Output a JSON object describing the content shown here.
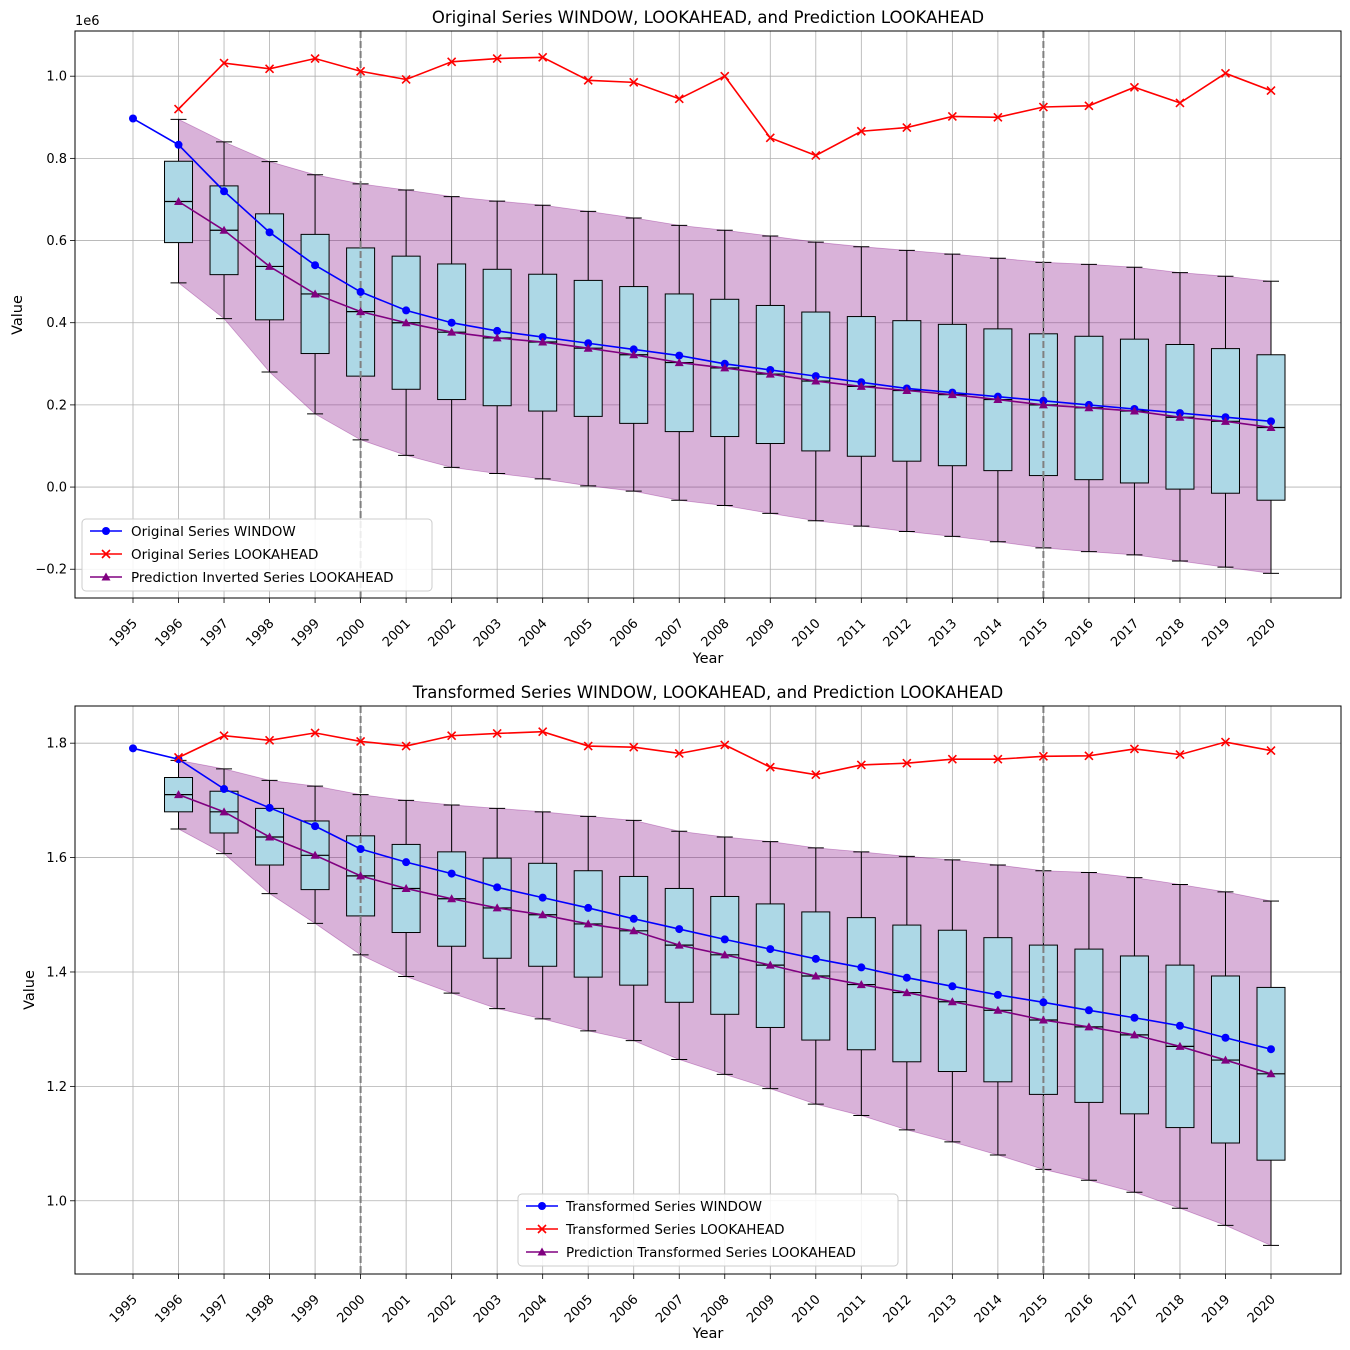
{
  "chart_data": [
    {
      "type": "line",
      "title": "Original Series WINDOW, LOOKAHEAD, and Prediction LOOKAHEAD",
      "xlabel": "Year",
      "ylabel": "Value",
      "offset_label": "1e6",
      "ylim": [
        -0.27,
        1.11
      ],
      "yticks": [
        -0.2,
        0.0,
        0.2,
        0.4,
        0.6,
        0.8,
        1.0
      ],
      "ytick_labels": [
        "−0.2",
        "0.0",
        "0.2",
        "0.4",
        "0.6",
        "0.8",
        "1.0"
      ],
      "years": [
        1995,
        1996,
        1997,
        1998,
        1999,
        2000,
        2001,
        2002,
        2003,
        2004,
        2005,
        2006,
        2007,
        2008,
        2009,
        2010,
        2011,
        2012,
        2013,
        2014,
        2015,
        2016,
        2017,
        2018,
        2019,
        2020
      ],
      "vlines": [
        2000,
        2015
      ],
      "legend_position": "lower-left",
      "series": [
        {
          "name": "Original Series WINDOW",
          "color": "#0000ff",
          "marker": "circle",
          "x": [
            1995,
            1996,
            1997,
            1998,
            1999,
            2000,
            2001,
            2002,
            2003,
            2004,
            2005,
            2006,
            2007,
            2008,
            2009,
            2010,
            2011,
            2012,
            2013,
            2014,
            2015,
            2016,
            2017,
            2018,
            2019,
            2020
          ],
          "values": [
            0.897,
            0.833,
            0.72,
            0.62,
            0.54,
            0.475,
            0.43,
            0.4,
            0.38,
            0.365,
            0.35,
            0.335,
            0.32,
            0.3,
            0.285,
            0.27,
            0.255,
            0.24,
            0.23,
            0.22,
            0.21,
            0.2,
            0.19,
            0.18,
            0.17,
            0.16
          ]
        },
        {
          "name": "Original Series LOOKAHEAD",
          "color": "#ff0000",
          "marker": "x",
          "x": [
            1996,
            1997,
            1998,
            1999,
            2000,
            2001,
            2002,
            2003,
            2004,
            2005,
            2006,
            2007,
            2008,
            2009,
            2010,
            2011,
            2012,
            2013,
            2014,
            2015,
            2016,
            2017,
            2018,
            2019,
            2020
          ],
          "values": [
            0.92,
            1.032,
            1.018,
            1.043,
            1.012,
            0.992,
            1.035,
            1.043,
            1.046,
            0.99,
            0.985,
            0.945,
            1.0,
            0.85,
            0.807,
            0.866,
            0.875,
            0.902,
            0.9,
            0.925,
            0.928,
            0.973,
            0.935,
            1.007,
            0.965
          ]
        },
        {
          "name": "Prediction Inverted Series LOOKAHEAD",
          "color": "#800080",
          "marker": "triangle",
          "x": [
            1996,
            1997,
            1998,
            1999,
            2000,
            2001,
            2002,
            2003,
            2004,
            2005,
            2006,
            2007,
            2008,
            2009,
            2010,
            2011,
            2012,
            2013,
            2014,
            2015,
            2016,
            2017,
            2018,
            2019,
            2020
          ],
          "values": [
            0.695,
            0.625,
            0.537,
            0.47,
            0.427,
            0.4,
            0.377,
            0.363,
            0.353,
            0.338,
            0.322,
            0.303,
            0.29,
            0.275,
            0.258,
            0.245,
            0.235,
            0.225,
            0.213,
            0.2,
            0.193,
            0.185,
            0.17,
            0.16,
            0.145
          ]
        }
      ],
      "band": {
        "color": "#800080",
        "opacity": 0.3,
        "upper": [
          0.895,
          0.84,
          0.792,
          0.76,
          0.738,
          0.723,
          0.707,
          0.696,
          0.686,
          0.671,
          0.655,
          0.637,
          0.625,
          0.611,
          0.596,
          0.585,
          0.576,
          0.567,
          0.557,
          0.547,
          0.542,
          0.535,
          0.522,
          0.513,
          0.501
        ],
        "lower": [
          0.497,
          0.41,
          0.28,
          0.178,
          0.115,
          0.077,
          0.048,
          0.033,
          0.02,
          0.003,
          -0.01,
          -0.032,
          -0.045,
          -0.064,
          -0.082,
          -0.095,
          -0.108,
          -0.12,
          -0.133,
          -0.148,
          -0.157,
          -0.165,
          -0.18,
          -0.195,
          -0.21
        ]
      },
      "boxes": {
        "x": [
          1996,
          1997,
          1998,
          1999,
          2000,
          2001,
          2002,
          2003,
          2004,
          2005,
          2006,
          2007,
          2008,
          2009,
          2010,
          2011,
          2012,
          2013,
          2014,
          2015,
          2016,
          2017,
          2018,
          2019,
          2020
        ],
        "q1": [
          0.595,
          0.517,
          0.407,
          0.325,
          0.27,
          0.238,
          0.213,
          0.198,
          0.185,
          0.172,
          0.155,
          0.135,
          0.123,
          0.106,
          0.088,
          0.075,
          0.063,
          0.052,
          0.04,
          0.028,
          0.018,
          0.01,
          -0.005,
          -0.015,
          -0.032
        ],
        "median": [
          0.695,
          0.625,
          0.537,
          0.47,
          0.427,
          0.4,
          0.377,
          0.363,
          0.353,
          0.338,
          0.322,
          0.303,
          0.29,
          0.275,
          0.258,
          0.245,
          0.235,
          0.225,
          0.213,
          0.2,
          0.193,
          0.185,
          0.17,
          0.16,
          0.145
        ],
        "q3": [
          0.793,
          0.733,
          0.665,
          0.615,
          0.582,
          0.562,
          0.543,
          0.53,
          0.518,
          0.503,
          0.488,
          0.47,
          0.457,
          0.442,
          0.426,
          0.415,
          0.405,
          0.396,
          0.385,
          0.373,
          0.367,
          0.36,
          0.347,
          0.337,
          0.322
        ],
        "whisker_low": [
          0.497,
          0.41,
          0.28,
          0.178,
          0.115,
          0.077,
          0.048,
          0.033,
          0.02,
          0.003,
          -0.01,
          -0.032,
          -0.045,
          -0.064,
          -0.082,
          -0.095,
          -0.108,
          -0.12,
          -0.133,
          -0.148,
          -0.157,
          -0.165,
          -0.18,
          -0.195,
          -0.21
        ],
        "whisker_high": [
          0.895,
          0.84,
          0.792,
          0.76,
          0.738,
          0.723,
          0.707,
          0.696,
          0.686,
          0.671,
          0.655,
          0.637,
          0.625,
          0.611,
          0.596,
          0.585,
          0.576,
          0.567,
          0.557,
          0.547,
          0.542,
          0.535,
          0.522,
          0.513,
          0.501
        ]
      }
    },
    {
      "type": "line",
      "title": "Transformed Series WINDOW, LOOKAHEAD, and Prediction LOOKAHEAD",
      "xlabel": "Year",
      "ylabel": "Value",
      "offset_label": "",
      "ylim": [
        0.872,
        1.865
      ],
      "yticks": [
        1.0,
        1.2,
        1.4,
        1.6,
        1.8
      ],
      "ytick_labels": [
        "1.0",
        "1.2",
        "1.4",
        "1.6",
        "1.8"
      ],
      "years": [
        1995,
        1996,
        1997,
        1998,
        1999,
        2000,
        2001,
        2002,
        2003,
        2004,
        2005,
        2006,
        2007,
        2008,
        2009,
        2010,
        2011,
        2012,
        2013,
        2014,
        2015,
        2016,
        2017,
        2018,
        2019,
        2020
      ],
      "vlines": [
        2000,
        2015
      ],
      "legend_position": "lower-center",
      "series": [
        {
          "name": "Transformed Series WINDOW",
          "color": "#0000ff",
          "marker": "circle",
          "x": [
            1995,
            1996,
            1997,
            1998,
            1999,
            2000,
            2001,
            2002,
            2003,
            2004,
            2005,
            2006,
            2007,
            2008,
            2009,
            2010,
            2011,
            2012,
            2013,
            2014,
            2015,
            2016,
            2017,
            2018,
            2019,
            2020
          ],
          "values": [
            1.791,
            1.772,
            1.72,
            1.687,
            1.655,
            1.615,
            1.592,
            1.572,
            1.548,
            1.53,
            1.512,
            1.493,
            1.475,
            1.457,
            1.44,
            1.423,
            1.408,
            1.39,
            1.375,
            1.36,
            1.347,
            1.333,
            1.32,
            1.306,
            1.285,
            1.265
          ]
        },
        {
          "name": "Transformed Series LOOKAHEAD",
          "color": "#ff0000",
          "marker": "x",
          "x": [
            1996,
            1997,
            1998,
            1999,
            2000,
            2001,
            2002,
            2003,
            2004,
            2005,
            2006,
            2007,
            2008,
            2009,
            2010,
            2011,
            2012,
            2013,
            2014,
            2015,
            2016,
            2017,
            2018,
            2019,
            2020
          ],
          "values": [
            1.775,
            1.813,
            1.805,
            1.818,
            1.803,
            1.795,
            1.813,
            1.817,
            1.82,
            1.795,
            1.793,
            1.782,
            1.797,
            1.758,
            1.745,
            1.762,
            1.765,
            1.772,
            1.772,
            1.777,
            1.778,
            1.79,
            1.78,
            1.802,
            1.787
          ]
        },
        {
          "name": "Prediction Transformed Series LOOKAHEAD",
          "color": "#800080",
          "marker": "triangle",
          "x": [
            1996,
            1997,
            1998,
            1999,
            2000,
            2001,
            2002,
            2003,
            2004,
            2005,
            2006,
            2007,
            2008,
            2009,
            2010,
            2011,
            2012,
            2013,
            2014,
            2015,
            2016,
            2017,
            2018,
            2019,
            2020
          ],
          "values": [
            1.71,
            1.68,
            1.636,
            1.604,
            1.568,
            1.546,
            1.528,
            1.512,
            1.5,
            1.484,
            1.472,
            1.447,
            1.43,
            1.412,
            1.393,
            1.378,
            1.364,
            1.348,
            1.333,
            1.316,
            1.304,
            1.29,
            1.27,
            1.246,
            1.222
          ]
        }
      ],
      "band": {
        "color": "#800080",
        "opacity": 0.3,
        "upper": [
          1.77,
          1.755,
          1.735,
          1.725,
          1.71,
          1.7,
          1.692,
          1.686,
          1.68,
          1.672,
          1.665,
          1.646,
          1.636,
          1.628,
          1.617,
          1.61,
          1.602,
          1.596,
          1.587,
          1.577,
          1.574,
          1.565,
          1.553,
          1.54,
          1.524
        ],
        "lower": [
          1.65,
          1.607,
          1.537,
          1.485,
          1.43,
          1.392,
          1.363,
          1.336,
          1.318,
          1.297,
          1.28,
          1.247,
          1.221,
          1.196,
          1.169,
          1.149,
          1.124,
          1.103,
          1.08,
          1.055,
          1.036,
          1.015,
          0.987,
          0.957,
          0.922
        ]
      },
      "boxes": {
        "x": [
          1996,
          1997,
          1998,
          1999,
          2000,
          2001,
          2002,
          2003,
          2004,
          2005,
          2006,
          2007,
          2008,
          2009,
          2010,
          2011,
          2012,
          2013,
          2014,
          2015,
          2016,
          2017,
          2018,
          2019,
          2020
        ],
        "q1": [
          1.68,
          1.643,
          1.587,
          1.544,
          1.498,
          1.469,
          1.445,
          1.424,
          1.41,
          1.391,
          1.377,
          1.347,
          1.326,
          1.303,
          1.281,
          1.264,
          1.243,
          1.226,
          1.208,
          1.186,
          1.172,
          1.152,
          1.128,
          1.101,
          1.071
        ],
        "median": [
          1.71,
          1.68,
          1.636,
          1.604,
          1.568,
          1.546,
          1.528,
          1.512,
          1.5,
          1.484,
          1.472,
          1.447,
          1.43,
          1.412,
          1.393,
          1.378,
          1.364,
          1.348,
          1.333,
          1.316,
          1.304,
          1.29,
          1.27,
          1.246,
          1.222
        ],
        "q3": [
          1.74,
          1.716,
          1.686,
          1.664,
          1.638,
          1.623,
          1.61,
          1.599,
          1.59,
          1.577,
          1.567,
          1.546,
          1.532,
          1.519,
          1.505,
          1.495,
          1.482,
          1.473,
          1.46,
          1.447,
          1.44,
          1.428,
          1.412,
          1.393,
          1.373
        ],
        "whisker_low": [
          1.65,
          1.607,
          1.537,
          1.485,
          1.43,
          1.392,
          1.363,
          1.336,
          1.318,
          1.297,
          1.28,
          1.247,
          1.221,
          1.196,
          1.169,
          1.149,
          1.124,
          1.103,
          1.08,
          1.055,
          1.036,
          1.015,
          0.987,
          0.957,
          0.922
        ],
        "whisker_high": [
          1.77,
          1.755,
          1.735,
          1.725,
          1.71,
          1.7,
          1.692,
          1.686,
          1.68,
          1.672,
          1.665,
          1.646,
          1.636,
          1.628,
          1.617,
          1.61,
          1.602,
          1.596,
          1.587,
          1.577,
          1.574,
          1.565,
          1.553,
          1.54,
          1.524
        ]
      }
    }
  ]
}
